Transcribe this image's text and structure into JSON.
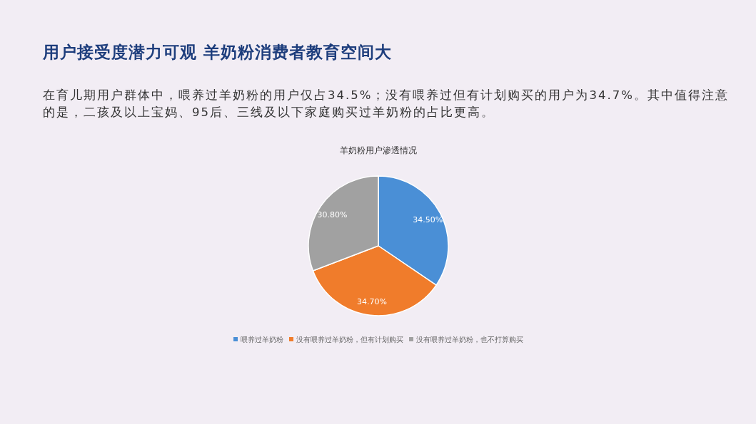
{
  "chart_data": {
    "type": "pie",
    "title": "用户接受度潜力可观 羊奶粉消费者教育空间大",
    "subtitle": "在育儿期用户群体中，喂养过羊奶粉的用户仅占34.5%；没有喂养过但有计划购买的用户为34.7%。其中值得注意的是，二孩及以上宝妈、95后、三线及以下家庭购买过羊奶粉的占比更高。",
    "annotations": [
      "羊奶粉用户渗透情况"
    ],
    "categories": [
      "喂养过羊奶粉",
      "没有喂养过羊奶粉，但有计划购买",
      "没有喂养过羊奶粉，也不打算购买"
    ],
    "values": [
      34.5,
      34.7,
      30.8
    ],
    "colors": [
      "#4a8fd6",
      "#f07c2b",
      "#a1a1a1"
    ],
    "value_labels": [
      "34.50%",
      "34.70%",
      "30.80%"
    ],
    "legend": "bottom"
  }
}
